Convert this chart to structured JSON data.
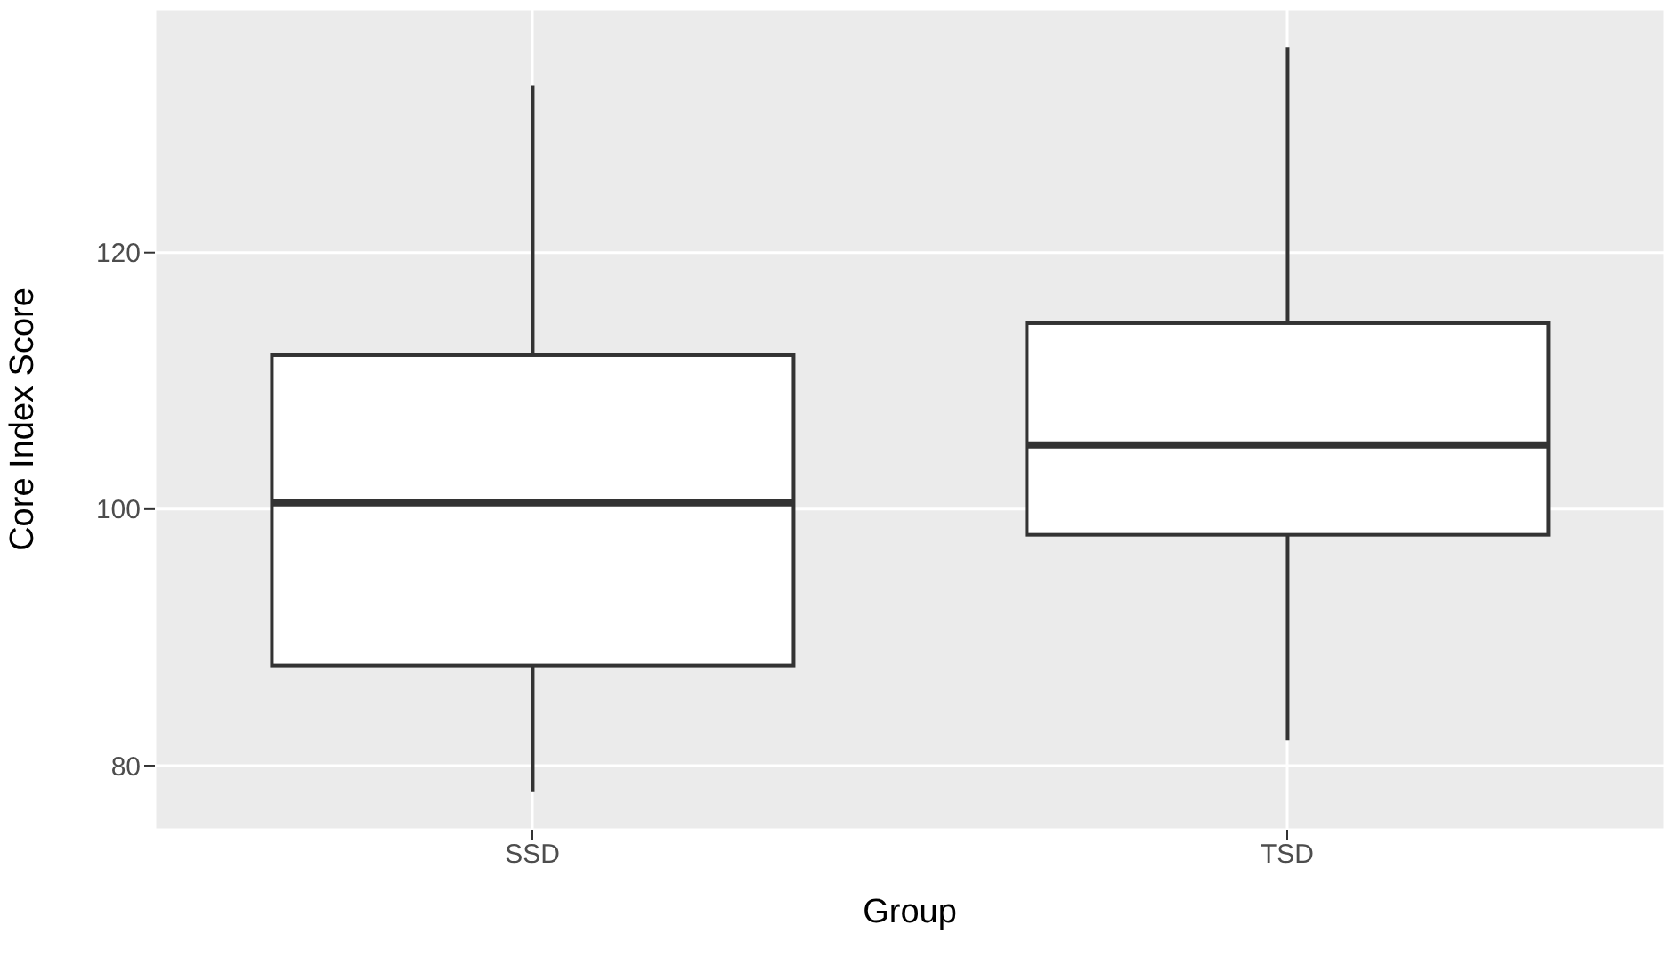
{
  "chart_data": {
    "type": "box",
    "xlabel": "Group",
    "ylabel": "Core Index Score",
    "categories": [
      "SSD",
      "TSD"
    ],
    "boxes": [
      {
        "low": 78,
        "q1": 87.8,
        "median": 100.5,
        "q3": 112,
        "high": 133
      },
      {
        "low": 82,
        "q1": 98,
        "median": 105,
        "q3": 114.5,
        "high": 136
      }
    ],
    "ylim": [
      75,
      139
    ],
    "yticks": [
      80,
      100,
      120
    ],
    "grid": true
  }
}
